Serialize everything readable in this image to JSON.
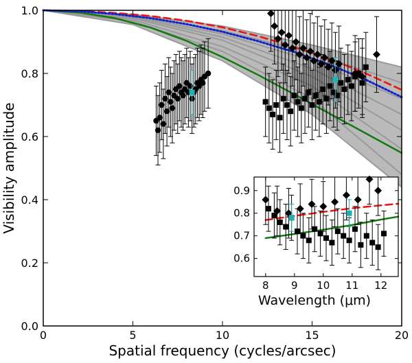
{
  "chart_data": [
    {
      "type": "scatter",
      "title": "",
      "xlabel": "Spatial frequency (cycles/arcsec)",
      "ylabel": "Visibility amplitude",
      "xlim": [
        0,
        20
      ],
      "ylim": [
        0.0,
        1.0
      ],
      "xticks": [
        "0",
        "5",
        "10",
        "15",
        "20"
      ],
      "yticks": [
        "0.0",
        "0.2",
        "0.4",
        "0.6",
        "0.8",
        "1.0"
      ],
      "model_band": {
        "name": "grey model curves",
        "color": "#9a9a9a",
        "curves": [
          {
            "x": [
              0,
              5,
              10,
              15,
              20
            ],
            "y": [
              1.0,
              0.987,
              0.95,
              0.89,
              0.82
            ]
          },
          {
            "x": [
              0,
              5,
              10,
              15,
              20
            ],
            "y": [
              1.0,
              0.985,
              0.935,
              0.865,
              0.77
            ]
          },
          {
            "x": [
              0,
              5,
              10,
              15,
              20
            ],
            "y": [
              1.0,
              0.982,
              0.925,
              0.84,
              0.72
            ]
          },
          {
            "x": [
              0,
              5,
              10,
              15,
              20
            ],
            "y": [
              1.0,
              0.979,
              0.915,
              0.815,
              0.67
            ]
          },
          {
            "x": [
              0,
              5,
              10,
              15,
              20
            ],
            "y": [
              1.0,
              0.975,
              0.905,
              0.79,
              0.62
            ]
          },
          {
            "x": [
              0,
              5,
              10,
              15,
              20
            ],
            "y": [
              1.0,
              0.97,
              0.885,
              0.76,
              0.56
            ]
          },
          {
            "x": [
              0,
              5,
              10,
              15,
              20
            ],
            "y": [
              1.0,
              0.965,
              0.87,
              0.72,
              0.48
            ]
          },
          {
            "x": [
              0,
              5,
              10,
              15,
              20
            ],
            "y": [
              1.0,
              0.955,
              0.84,
              0.67,
              0.44
            ]
          }
        ]
      },
      "series": [
        {
          "name": "green model",
          "style": "solid",
          "color": "#117a11",
          "x": [
            0,
            2,
            4,
            6,
            8,
            10,
            12,
            14,
            16,
            18,
            20
          ],
          "y": [
            1.0,
            0.993,
            0.975,
            0.945,
            0.903,
            0.852,
            0.795,
            0.734,
            0.672,
            0.61,
            0.548
          ]
        },
        {
          "name": "red dashed model",
          "style": "dashed",
          "color": "#ee1111",
          "x": [
            0,
            2,
            4,
            6,
            8,
            10,
            12,
            14,
            16,
            18,
            20
          ],
          "y": [
            1.0,
            0.998,
            0.992,
            0.982,
            0.967,
            0.946,
            0.918,
            0.884,
            0.845,
            0.8,
            0.748
          ]
        },
        {
          "name": "blue dotted model",
          "style": "dotted",
          "color": "#1122cc",
          "x": [
            0,
            2,
            4,
            6,
            8,
            10,
            12,
            14,
            16,
            18,
            20
          ],
          "y": [
            1.0,
            0.997,
            0.988,
            0.975,
            0.956,
            0.932,
            0.902,
            0.868,
            0.827,
            0.78,
            0.725
          ]
        }
      ],
      "observations": {
        "marker_color": "#000000",
        "highlight_color": "#22b0b0",
        "groups": [
          {
            "name": "baseline cluster 1",
            "marker": "circle",
            "x": [
              6.3,
              6.4,
              6.5,
              6.6,
              6.7,
              6.8,
              6.9,
              7.0,
              7.1,
              7.2,
              7.3,
              7.4,
              7.5,
              7.6,
              7.7,
              7.8,
              7.9,
              8.0,
              8.1,
              8.2,
              8.3,
              8.4,
              8.5,
              8.6,
              8.7,
              8.8,
              8.9,
              9.0,
              9.2
            ],
            "y": [
              0.65,
              0.62,
              0.66,
              0.7,
              0.64,
              0.72,
              0.68,
              0.74,
              0.71,
              0.69,
              0.73,
              0.75,
              0.72,
              0.76,
              0.74,
              0.73,
              0.75,
              0.77,
              0.74,
              0.76,
              0.72,
              0.74,
              0.75,
              0.77,
              0.76,
              0.78,
              0.77,
              0.79,
              0.8
            ],
            "yerr": 0.11
          },
          {
            "name": "baseline cluster 2 (squares)",
            "marker": "square",
            "x": [
              12.4,
              12.6,
              12.8,
              13.0,
              13.2,
              13.4,
              13.6,
              13.8,
              14.0,
              14.2,
              14.4,
              14.6,
              14.8,
              15.0,
              15.2,
              15.4,
              15.6,
              15.8,
              16.0,
              16.2,
              16.4,
              16.6,
              16.8,
              17.0,
              17.2,
              17.4,
              17.6,
              17.8,
              18.0
            ],
            "y": [
              0.71,
              0.69,
              0.67,
              0.7,
              0.66,
              0.72,
              0.7,
              0.68,
              0.73,
              0.71,
              0.69,
              0.72,
              0.74,
              0.7,
              0.73,
              0.71,
              0.75,
              0.72,
              0.76,
              0.74,
              0.73,
              0.77,
              0.75,
              0.78,
              0.76,
              0.79,
              0.8,
              0.77,
              0.82
            ],
            "yerr": 0.11
          },
          {
            "name": "baseline cluster 2 (diamonds)",
            "marker": "diamond",
            "x": [
              12.7,
              12.9,
              13.1,
              13.3,
              13.5,
              13.7,
              13.9,
              14.1,
              14.3,
              14.5,
              14.7,
              14.9,
              15.1,
              15.3,
              15.5,
              15.7,
              15.9,
              16.1,
              16.3,
              16.5,
              17.4,
              17.8,
              18.6
            ],
            "y": [
              0.99,
              0.95,
              0.91,
              0.93,
              0.89,
              0.92,
              0.88,
              0.9,
              0.86,
              0.88,
              0.85,
              0.87,
              0.84,
              0.86,
              0.83,
              0.85,
              0.82,
              0.84,
              0.81,
              0.83,
              0.8,
              0.79,
              0.86
            ],
            "yerr": 0.12
          },
          {
            "name": "cyan highlighted points",
            "marker": "square",
            "highlight": true,
            "x": [
              8.3,
              16.3
            ],
            "y": [
              0.74,
              0.78
            ],
            "yerr": 0.07
          }
        ]
      }
    },
    {
      "type": "scatter",
      "title": "",
      "xlabel": "Wavelength (μm)",
      "ylabel": "",
      "xlim": [
        7.6,
        12.6
      ],
      "ylim": [
        0.52,
        0.96
      ],
      "xticks": [
        "8",
        "9",
        "10",
        "11",
        "12"
      ],
      "yticks": [
        "0.6",
        "0.7",
        "0.8",
        "0.9"
      ],
      "series": [
        {
          "name": "green model",
          "style": "solid",
          "color": "#117a11",
          "x": [
            8.0,
            9.0,
            10.0,
            11.0,
            12.0,
            12.6
          ],
          "y": [
            0.69,
            0.708,
            0.727,
            0.748,
            0.772,
            0.785
          ]
        },
        {
          "name": "red dashed model",
          "style": "dashed",
          "color": "#ee1111",
          "x": [
            8.0,
            9.0,
            10.0,
            11.0,
            12.0,
            12.6
          ],
          "y": [
            0.77,
            0.788,
            0.806,
            0.822,
            0.835,
            0.842
          ]
        }
      ],
      "observations": {
        "groups": [
          {
            "name": "squares",
            "marker": "square",
            "x": [
              8.1,
              8.3,
              8.5,
              8.7,
              8.9,
              9.1,
              9.3,
              9.5,
              9.7,
              9.9,
              10.1,
              10.3,
              10.5,
              10.7,
              10.9,
              11.1,
              11.3,
              11.5,
              11.7,
              11.9,
              12.1
            ],
            "y": [
              0.82,
              0.79,
              0.76,
              0.74,
              0.78,
              0.72,
              0.7,
              0.68,
              0.73,
              0.71,
              0.69,
              0.67,
              0.72,
              0.7,
              0.68,
              0.73,
              0.66,
              0.7,
              0.67,
              0.65,
              0.71
            ],
            "yerr": 0.1
          },
          {
            "name": "diamonds",
            "marker": "diamond",
            "x": [
              8.0,
              8.4,
              8.8,
              9.2,
              9.6,
              10.0,
              10.4,
              10.8,
              11.2,
              11.6,
              11.9
            ],
            "y": [
              0.86,
              0.81,
              0.8,
              0.82,
              0.84,
              0.83,
              0.85,
              0.88,
              0.86,
              0.95,
              0.9
            ],
            "yerr": 0.11
          },
          {
            "name": "cyan highlighted points",
            "marker": "square",
            "highlight": true,
            "x": [
              8.9,
              10.9
            ],
            "y": [
              0.78,
              0.8
            ],
            "yerr": 0.06
          }
        ]
      }
    }
  ]
}
